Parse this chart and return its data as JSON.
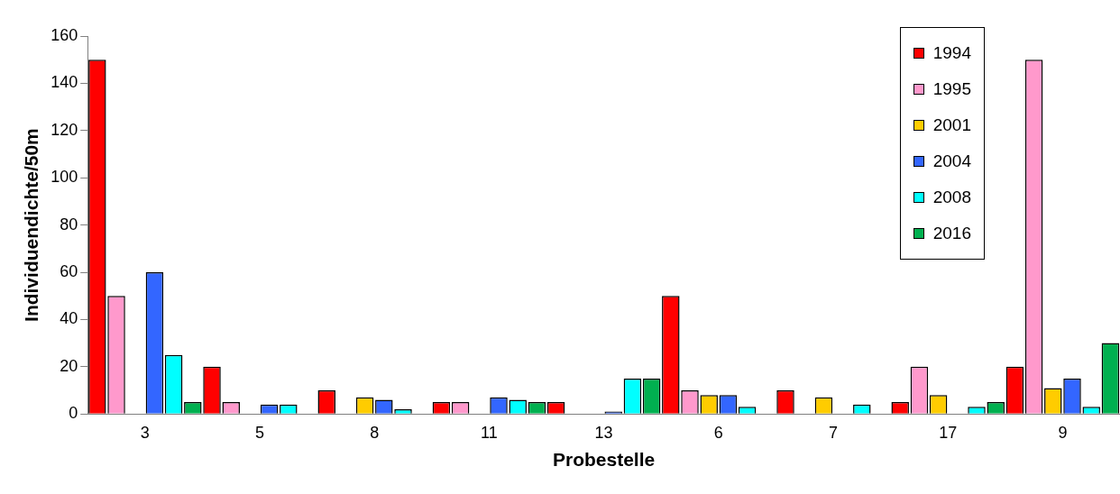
{
  "chart_data": {
    "type": "bar",
    "xlabel": "Probestelle",
    "ylabel": "Individuendichte/50m",
    "categories": [
      "3",
      "5",
      "8",
      "11",
      "13",
      "6",
      "7",
      "17",
      "9"
    ],
    "series": [
      {
        "name": "1994",
        "color": "#ff0000",
        "values": [
          150,
          20,
          10,
          5,
          5,
          50,
          10,
          5,
          20
        ]
      },
      {
        "name": "1995",
        "color": "#ff99cc",
        "values": [
          50,
          5,
          null,
          5,
          null,
          10,
          null,
          20,
          150
        ]
      },
      {
        "name": "2001",
        "color": "#ffcc00",
        "values": [
          null,
          null,
          7,
          null,
          null,
          8,
          7,
          8,
          11
        ]
      },
      {
        "name": "2004",
        "color": "#3366ff",
        "values": [
          60,
          4,
          6,
          7,
          1,
          8,
          null,
          null,
          15
        ]
      },
      {
        "name": "2008",
        "color": "#00ffff",
        "values": [
          25,
          4,
          2,
          6,
          15,
          3,
          4,
          3,
          3
        ]
      },
      {
        "name": "2016",
        "color": "#00b050",
        "values": [
          5,
          null,
          null,
          5,
          15,
          null,
          null,
          5,
          30
        ]
      }
    ],
    "ylim": [
      0,
      160
    ],
    "yticks": [
      0,
      20,
      40,
      60,
      80,
      100,
      120,
      140,
      160
    ],
    "grid": false,
    "legend": "top right"
  }
}
